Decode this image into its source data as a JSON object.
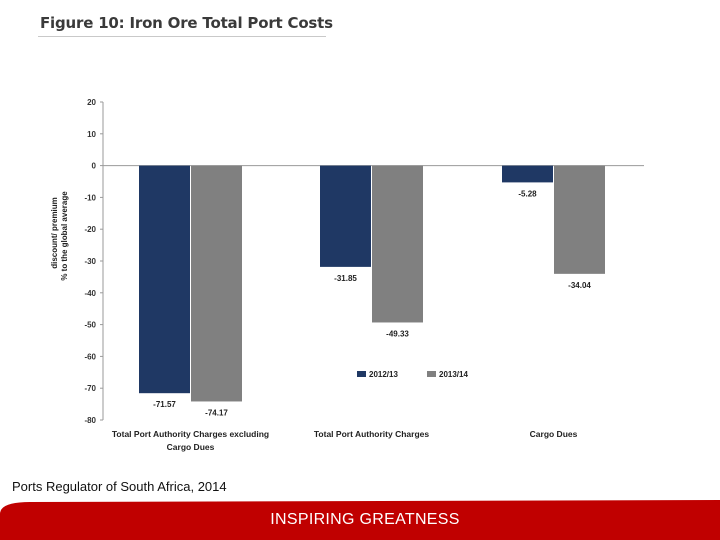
{
  "figure_title": "Figure 10: Iron Ore Total Port Costs",
  "source_note": "Ports Regulator of South Africa,  2014",
  "footer_text": "INSPIRING GREATNESS",
  "colors": {
    "series_2012": "#1f3864",
    "series_2013": "#808080",
    "footer_red": "#c00000",
    "axis": "#9a9a9a",
    "text": "#222222"
  },
  "chart_data": {
    "type": "bar",
    "title": "Figure 10: Iron Ore Total Port Costs",
    "ylabel_line1": "discount/ premium",
    "ylabel_line2": "% to the global average",
    "xlabel": "",
    "ylim": [
      -80,
      20
    ],
    "yticks": [
      20,
      10,
      0,
      -10,
      -20,
      -30,
      -40,
      -50,
      -60,
      -70,
      -80
    ],
    "categories": [
      [
        "Total Port Authority Charges excluding",
        "Cargo Dues"
      ],
      [
        "Total Port Authority Charges"
      ],
      [
        "Cargo Dues"
      ]
    ],
    "series": [
      {
        "name": "2012/13",
        "values": [
          -71.57,
          -31.85,
          -5.28
        ],
        "labels": [
          "-71.57",
          "-31.85",
          "-5.28"
        ]
      },
      {
        "name": "2013/14",
        "values": [
          -74.17,
          -49.33,
          -34.04
        ],
        "labels": [
          "-74.17",
          "-49.33",
          "-34.04"
        ]
      }
    ],
    "legend_position": "lower-right",
    "grid": false
  }
}
